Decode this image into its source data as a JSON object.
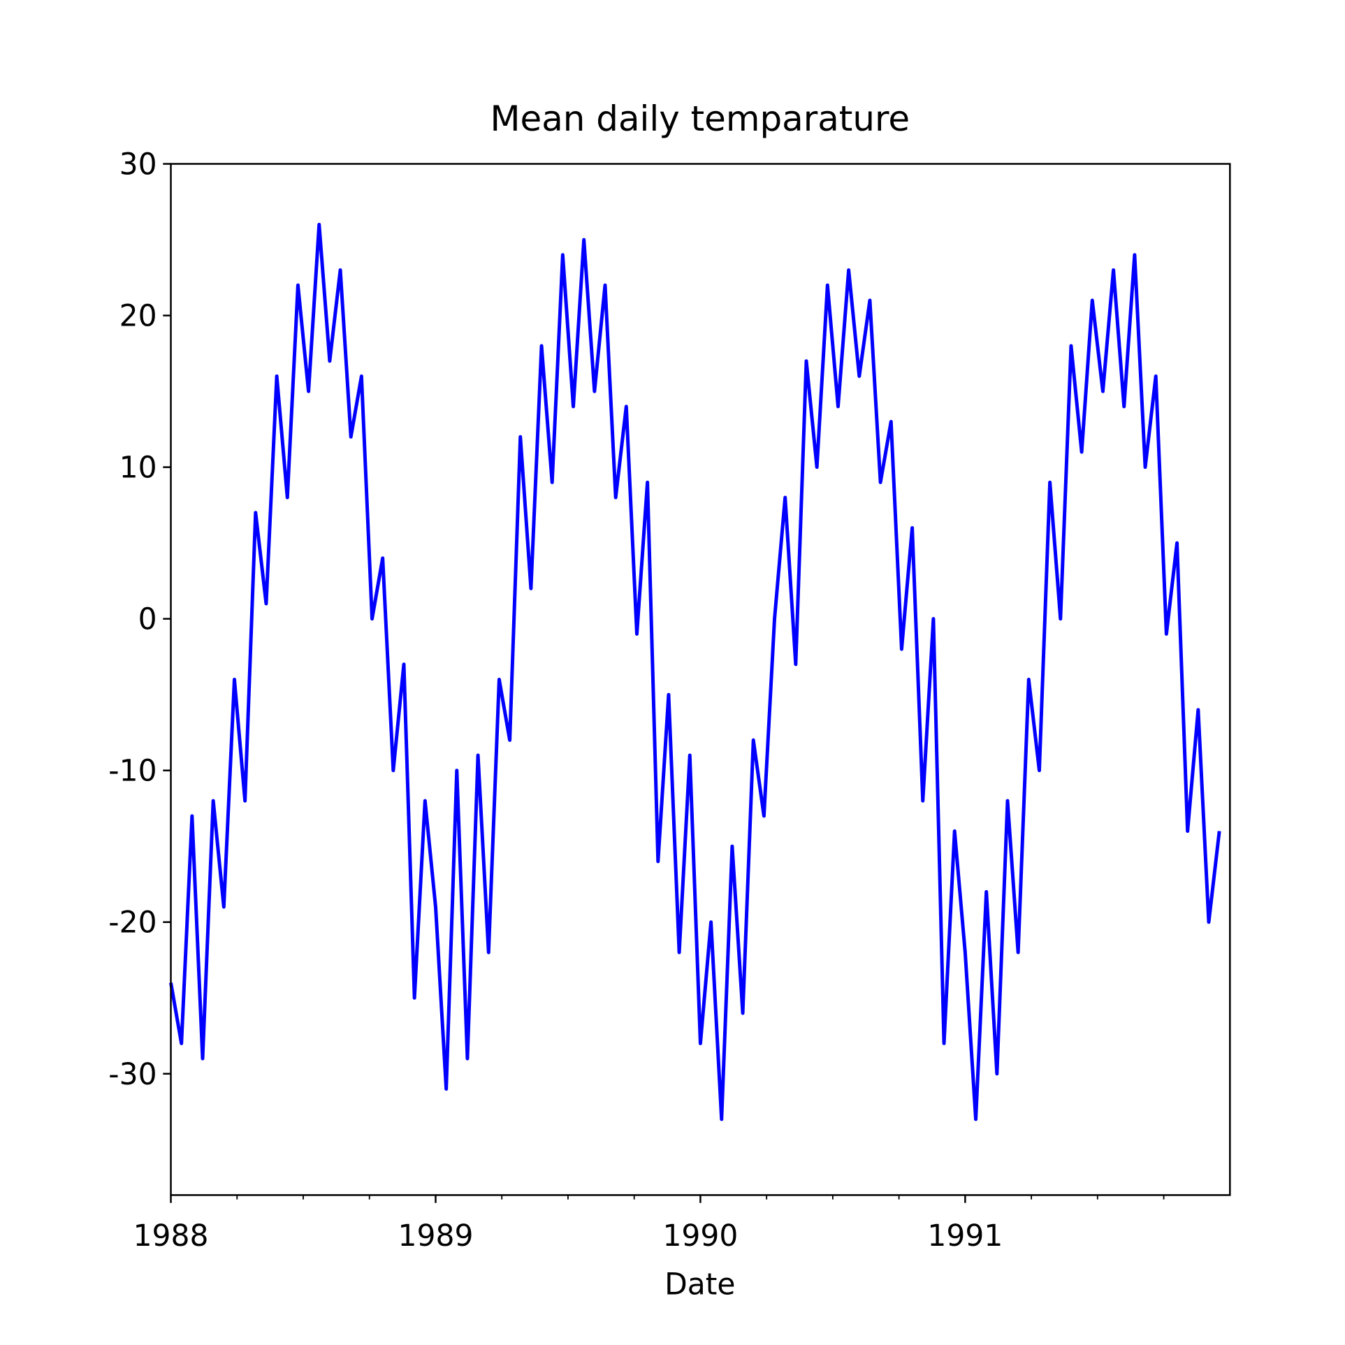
{
  "chart_data": {
    "type": "line",
    "title": "Mean daily temparature",
    "xlabel": "Date",
    "x": [
      1988,
      1988.04,
      1988.08,
      1988.12,
      1988.16,
      1988.2,
      1988.24,
      1988.28,
      1988.32,
      1988.36,
      1988.4,
      1988.44,
      1988.48,
      1988.52,
      1988.56,
      1988.6,
      1988.64,
      1988.68,
      1988.72,
      1988.76,
      1988.8,
      1988.84,
      1988.88,
      1988.92,
      1988.96,
      1989,
      1989.04,
      1989.08,
      1989.12,
      1989.16,
      1989.2,
      1989.24,
      1989.28,
      1989.32,
      1989.36,
      1989.4,
      1989.44,
      1989.48,
      1989.52,
      1989.56,
      1989.6,
      1989.64,
      1989.68,
      1989.72,
      1989.76,
      1989.8,
      1989.84,
      1989.88,
      1989.92,
      1989.96,
      1990,
      1990.04,
      1990.08,
      1990.12,
      1990.16,
      1990.2,
      1990.24,
      1990.28,
      1990.32,
      1990.36,
      1990.4,
      1990.44,
      1990.48,
      1990.52,
      1990.56,
      1990.6,
      1990.64,
      1990.68,
      1990.72,
      1990.76,
      1990.8,
      1990.84,
      1990.88,
      1990.92,
      1990.96,
      1991,
      1991.04,
      1991.08,
      1991.12,
      1991.16,
      1991.2,
      1991.24,
      1991.28,
      1991.32,
      1991.36,
      1991.4,
      1991.44,
      1991.48,
      1991.52,
      1991.56,
      1991.6,
      1991.64,
      1991.68,
      1991.72,
      1991.76,
      1991.8,
      1991.84,
      1991.88,
      1991.92,
      1991.96
    ],
    "series": [
      {
        "color": "#0000ff",
        "values": [
          -24,
          -28,
          -13,
          -29,
          -12,
          -19,
          -4,
          -12,
          7,
          1,
          16,
          8,
          22,
          15,
          26,
          17,
          23,
          12,
          16,
          0,
          4,
          -10,
          -3,
          -25,
          -12,
          -19,
          -31,
          -10,
          -29,
          -9,
          -22,
          -4,
          -8,
          12,
          2,
          18,
          9,
          24,
          14,
          25,
          15,
          22,
          8,
          14,
          -1,
          9,
          -16,
          -5,
          -22,
          -9,
          -28,
          -20,
          -33,
          -15,
          -26,
          -8,
          -13,
          0,
          8,
          -3,
          17,
          10,
          22,
          14,
          23,
          16,
          21,
          9,
          13,
          -2,
          6,
          -12,
          0,
          -28,
          -14,
          -22,
          -33,
          -18,
          -30,
          -12,
          -22,
          -4,
          -10,
          9,
          0,
          18,
          11,
          21,
          15,
          23,
          14,
          24,
          10,
          16,
          -1,
          5,
          -14,
          -6,
          -20,
          -14
        ]
      }
    ],
    "xlim": [
      1988,
      1992
    ],
    "xticks": [
      1988,
      1989,
      1990,
      1991
    ],
    "xminorticks": [
      1988.25,
      1988.5,
      1988.75,
      1989.25,
      1989.5,
      1989.75,
      1990.25,
      1990.5,
      1990.75,
      1991.25,
      1991.5,
      1991.75
    ],
    "ylim": [
      -38,
      30
    ],
    "yticks": [
      -30,
      -20,
      -10,
      0,
      10,
      20,
      30
    ]
  }
}
